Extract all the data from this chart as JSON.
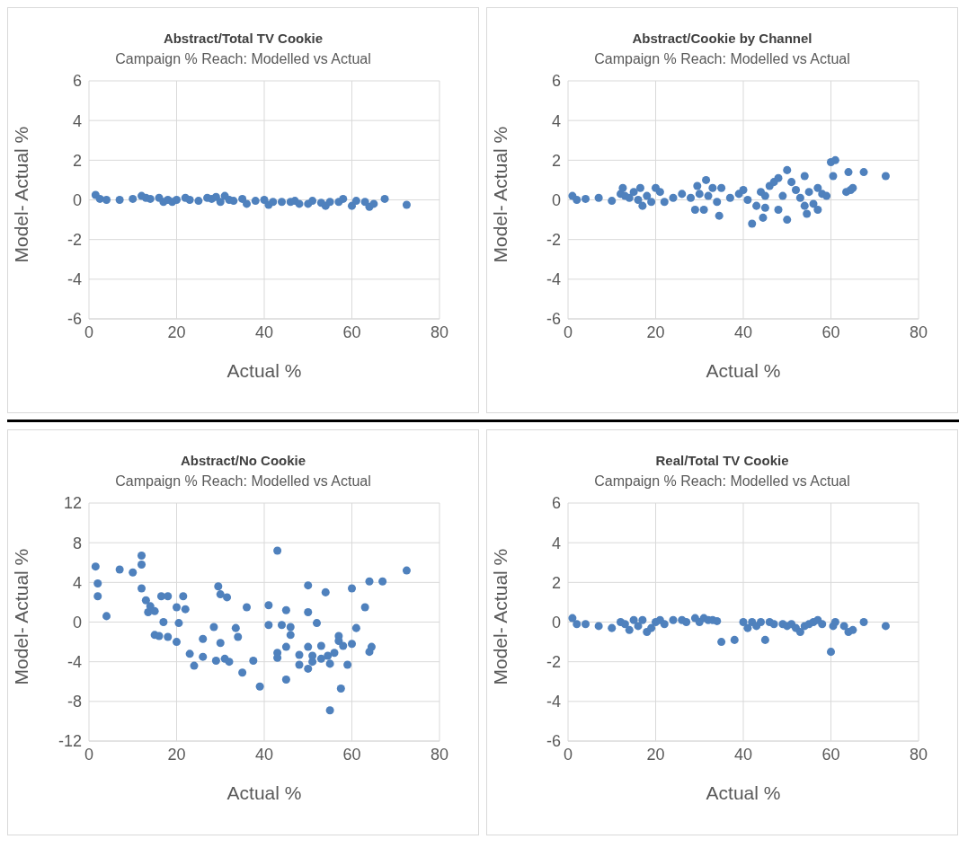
{
  "chart_data": [
    {
      "type": "scatter",
      "title": "Abstract/Total TV Cookie",
      "subtitle": "Campaign % Reach: Modelled vs Actual",
      "xlabel": "Actual %",
      "ylabel": "Model- Actual %",
      "xlim": [
        0,
        80
      ],
      "xticks": [
        0,
        20,
        40,
        60,
        80
      ],
      "ylim": [
        -6,
        6
      ],
      "yticks": [
        -6,
        -4,
        -2,
        0,
        2,
        4,
        6
      ],
      "grid": true,
      "legend": false,
      "marker": "circle",
      "series": [
        {
          "color": "#4f81bd",
          "x": [
            1.5,
            2.5,
            4,
            7,
            10,
            12,
            13,
            14,
            16,
            17,
            18,
            19,
            20,
            22,
            23,
            25,
            27,
            28,
            29,
            30,
            31,
            32,
            33,
            35,
            36,
            38,
            40,
            41,
            42,
            44,
            46,
            47,
            48,
            50,
            51,
            53,
            54,
            55,
            57,
            58,
            60,
            61,
            63,
            64,
            65,
            67.5,
            72.5
          ],
          "values": [
            0.25,
            0.05,
            0,
            0,
            0.05,
            0.2,
            0.1,
            0.05,
            0.1,
            -0.1,
            0,
            -0.1,
            0,
            0.1,
            0,
            -0.05,
            0.1,
            0.05,
            0.15,
            -0.1,
            0.2,
            0,
            -0.05,
            0.05,
            -0.2,
            -0.05,
            0,
            -0.25,
            -0.1,
            -0.1,
            -0.1,
            -0.05,
            -0.2,
            -0.2,
            -0.05,
            -0.15,
            -0.3,
            -0.1,
            -0.1,
            0.05,
            -0.3,
            -0.05,
            -0.1,
            -0.35,
            -0.2,
            0.05,
            -0.25
          ]
        }
      ]
    },
    {
      "type": "scatter",
      "title": "Abstract/Cookie by Channel",
      "subtitle": "Campaign % Reach: Modelled vs Actual",
      "xlabel": "Actual %",
      "ylabel": "Model- Actual %",
      "xlim": [
        0,
        80
      ],
      "xticks": [
        0,
        20,
        40,
        60,
        80
      ],
      "ylim": [
        -6,
        6
      ],
      "yticks": [
        -6,
        -4,
        -2,
        0,
        2,
        4,
        6
      ],
      "grid": true,
      "legend": false,
      "marker": "circle",
      "series": [
        {
          "color": "#4f81bd",
          "x": [
            1,
            2,
            4,
            7,
            10,
            12,
            12.5,
            13,
            14,
            15,
            16,
            16.5,
            17,
            18,
            19,
            20,
            21,
            22,
            24,
            26,
            28,
            29,
            29.5,
            30,
            31,
            31.5,
            32,
            33,
            34,
            34.5,
            35,
            37,
            39,
            40,
            41,
            42,
            43,
            44,
            44.5,
            45,
            45,
            46,
            47,
            48,
            48,
            49,
            50,
            50,
            51,
            52,
            53,
            54,
            54,
            54.5,
            55,
            56,
            57,
            57,
            58,
            59,
            60,
            60.5,
            61,
            63.5,
            64,
            64.5,
            65,
            67.5,
            72.5
          ],
          "values": [
            0.2,
            0,
            0.05,
            0.1,
            -0.05,
            0.3,
            0.6,
            0.2,
            0.1,
            0.4,
            0,
            0.6,
            -0.3,
            0.2,
            -0.1,
            0.6,
            0.4,
            -0.1,
            0.1,
            0.3,
            0.1,
            -0.5,
            0.7,
            0.3,
            -0.5,
            1.0,
            0.2,
            0.6,
            -0.1,
            -0.8,
            0.6,
            0.1,
            0.3,
            0.5,
            0,
            -1.2,
            -0.3,
            0.4,
            -0.9,
            0.2,
            -0.4,
            0.7,
            0.9,
            -0.5,
            1.1,
            0.2,
            -1.0,
            1.5,
            0.9,
            0.5,
            0.1,
            -0.3,
            1.2,
            -0.7,
            0.4,
            -0.2,
            0.6,
            -0.5,
            0.3,
            0.2,
            1.9,
            1.2,
            2.0,
            0.4,
            1.4,
            0.5,
            0.6,
            1.4,
            1.2
          ]
        }
      ]
    },
    {
      "type": "scatter",
      "title": "Abstract/No Cookie",
      "subtitle": "Campaign % Reach: Modelled vs Actual",
      "xlabel": "Actual %",
      "ylabel": "Model- Actual %",
      "xlim": [
        0,
        80
      ],
      "xticks": [
        0,
        20,
        40,
        60,
        80
      ],
      "ylim": [
        -12,
        12
      ],
      "yticks": [
        -12,
        -8,
        -4,
        0,
        4,
        8,
        12
      ],
      "grid": true,
      "legend": false,
      "marker": "circle",
      "series": [
        {
          "color": "#4f81bd",
          "x": [
            1.5,
            2,
            2,
            4,
            7,
            10,
            12,
            12,
            12,
            13,
            13.5,
            14,
            15,
            15,
            16,
            16.5,
            17,
            18,
            18,
            20,
            20,
            20.5,
            21.5,
            22,
            23,
            24,
            26,
            26,
            28.5,
            29,
            29.5,
            30,
            30,
            31,
            31.5,
            32,
            33.5,
            34,
            35,
            36,
            37.5,
            39,
            41,
            41,
            43,
            43,
            43,
            44,
            45,
            45,
            45,
            46,
            46,
            48,
            48,
            50,
            50,
            50,
            50,
            51,
            51,
            52,
            53,
            53,
            54,
            54.5,
            55,
            55,
            56,
            57,
            57,
            57.5,
            58,
            59,
            60,
            60,
            61,
            63,
            64,
            64,
            64.5,
            67,
            72.5
          ],
          "values": [
            5.6,
            3.9,
            2.6,
            0.6,
            5.3,
            5,
            6.7,
            5.8,
            3.4,
            2.2,
            1.0,
            1.6,
            1.1,
            -1.3,
            -1.4,
            2.6,
            0,
            2.6,
            -1.5,
            1.5,
            -2.0,
            -0.1,
            2.6,
            1.3,
            -3.2,
            -4.4,
            -1.7,
            -3.5,
            -0.5,
            -3.9,
            3.6,
            2.8,
            -2.1,
            -3.7,
            2.5,
            -4.0,
            -0.6,
            -1.5,
            -5.1,
            1.5,
            -3.9,
            -6.5,
            1.7,
            -0.3,
            7.2,
            -3.1,
            -3.6,
            -0.3,
            1.2,
            -2.5,
            -5.8,
            -0.5,
            -1.3,
            -3.3,
            -4.3,
            3.7,
            1.0,
            -2.5,
            -4.7,
            -4.0,
            -3.4,
            -0.1,
            -2.4,
            -3.7,
            3.0,
            -3.4,
            -8.9,
            -4.2,
            -3.1,
            -1.4,
            -1.9,
            -6.7,
            -2.4,
            -4.3,
            3.4,
            -2.2,
            -0.6,
            1.5,
            4.1,
            -3.0,
            -2.5,
            4.1,
            5.2
          ]
        }
      ]
    },
    {
      "type": "scatter",
      "title": "Real/Total TV Cookie",
      "subtitle": "Campaign % Reach: Modelled vs Actual",
      "xlabel": "Actual %",
      "ylabel": "Model- Actual %",
      "xlim": [
        0,
        80
      ],
      "xticks": [
        0,
        20,
        40,
        60,
        80
      ],
      "ylim": [
        -6,
        6
      ],
      "yticks": [
        -6,
        -4,
        -2,
        0,
        2,
        4,
        6
      ],
      "grid": true,
      "legend": false,
      "marker": "circle",
      "series": [
        {
          "color": "#4f81bd",
          "x": [
            1,
            2,
            4,
            7,
            10,
            12,
            13,
            14,
            15,
            16,
            17,
            18,
            19,
            20,
            21,
            22,
            24,
            26,
            27,
            29,
            30,
            31,
            32,
            33,
            34,
            35,
            38,
            40,
            41,
            42,
            43,
            44,
            45,
            46,
            47,
            49,
            50,
            51,
            52,
            53,
            54,
            55,
            56,
            57,
            58,
            60,
            60.5,
            61,
            63,
            64,
            65,
            67.5,
            72.5
          ],
          "values": [
            0.2,
            -0.1,
            -0.1,
            -0.2,
            -0.3,
            0,
            -0.1,
            -0.4,
            0.1,
            -0.2,
            0.1,
            -0.5,
            -0.3,
            0,
            0.1,
            -0.1,
            0.1,
            0.1,
            0,
            0.2,
            0,
            0.2,
            0.1,
            0.1,
            0.05,
            -1.0,
            -0.9,
            0,
            -0.3,
            0,
            -0.2,
            0,
            -0.9,
            0,
            -0.1,
            -0.1,
            -0.2,
            -0.1,
            -0.3,
            -0.5,
            -0.2,
            -0.1,
            0,
            0.1,
            -0.1,
            -1.5,
            -0.2,
            0,
            -0.2,
            -0.5,
            -0.4,
            0,
            -0.2
          ]
        }
      ]
    }
  ]
}
